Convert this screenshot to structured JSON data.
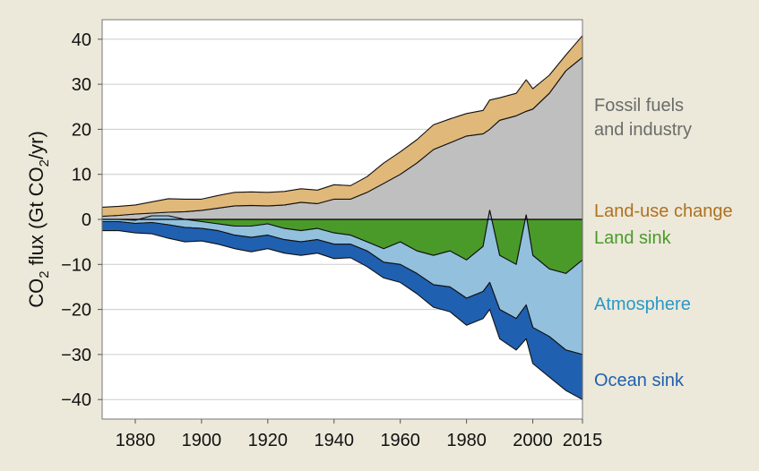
{
  "chart_data": {
    "type": "area",
    "title": "",
    "xlabel": "",
    "ylabel": {
      "prefix": "CO",
      "sub1": "2",
      "middle": " flux (Gt CO",
      "sub2": "2",
      "suffix": "/yr)"
    },
    "xlim": [
      1870,
      2015
    ],
    "ylim": [
      -42,
      44
    ],
    "x_ticks": [
      1880,
      1900,
      1920,
      1940,
      1960,
      1980,
      2000,
      2015
    ],
    "y_ticks": [
      40,
      30,
      20,
      10,
      0,
      -10,
      -20,
      -30,
      -40
    ],
    "y_tick_labels": [
      "40",
      "30",
      "20",
      "10",
      "0",
      "−10",
      "−20",
      "−30",
      "−40"
    ],
    "grid": "horizontal",
    "years": [
      1870,
      1875,
      1880,
      1885,
      1890,
      1895,
      1900,
      1905,
      1910,
      1915,
      1920,
      1925,
      1930,
      1935,
      1940,
      1945,
      1950,
      1955,
      1960,
      1965,
      1970,
      1975,
      1980,
      1985,
      1987,
      1990,
      1995,
      1998,
      2000,
      2005,
      2010,
      2015
    ],
    "series": [
      {
        "name": "Fossil fuels and industry",
        "label_lines": [
          "Fossil fuels",
          " and industry"
        ],
        "color": "#bfbfbf",
        "label_color": "#6b6b6b",
        "side": "positive",
        "values": [
          0.7,
          0.9,
          1.2,
          1.4,
          1.6,
          1.7,
          2.0,
          2.5,
          3.0,
          3.1,
          3.0,
          3.2,
          3.8,
          3.5,
          4.5,
          4.5,
          6.0,
          8.0,
          10.0,
          12.5,
          15.5,
          17.0,
          18.5,
          19.0,
          20.0,
          22.0,
          23.0,
          24.0,
          24.5,
          28.0,
          33.0,
          36.0
        ]
      },
      {
        "name": "Land-use change",
        "label_lines": [
          "Land-use change"
        ],
        "color": "#e0b87a",
        "label_color": "#b07020",
        "side": "positive",
        "values": [
          2.0,
          2.0,
          2.0,
          2.5,
          3.0,
          2.8,
          2.5,
          2.8,
          3.0,
          3.0,
          3.0,
          3.0,
          3.0,
          3.0,
          3.2,
          3.0,
          3.5,
          4.5,
          5.0,
          5.2,
          5.5,
          5.3,
          5.0,
          5.2,
          6.5,
          5.0,
          5.0,
          7.0,
          4.5,
          4.0,
          3.5,
          4.8
        ]
      },
      {
        "name": "Land sink",
        "label_lines": [
          "Land sink"
        ],
        "color": "#4a9a2a",
        "label_color": "#4a9a2a",
        "side": "negative",
        "values": [
          0.0,
          0.0,
          -0.2,
          0.8,
          0.8,
          0.0,
          -0.5,
          -1.0,
          -1.5,
          -1.5,
          -1.0,
          -2.0,
          -2.5,
          -2.0,
          -3.0,
          -3.5,
          -5.0,
          -6.5,
          -5.0,
          -7.0,
          -8.0,
          -7.0,
          -9.0,
          -6.0,
          2.0,
          -8.0,
          -10.0,
          1.0,
          -8.0,
          -11.0,
          -12.0,
          -9.0
        ]
      },
      {
        "name": "Atmosphere",
        "label_lines": [
          "Atmosphere"
        ],
        "color": "#93c0dd",
        "label_color": "#2a98c8",
        "side": "negative",
        "values": [
          -0.5,
          -0.5,
          -0.7,
          -1.5,
          -2.0,
          -1.8,
          -1.5,
          -1.5,
          -2.0,
          -2.5,
          -2.5,
          -2.5,
          -2.5,
          -2.5,
          -2.5,
          -2.0,
          -2.0,
          -3.0,
          -5.0,
          -5.0,
          -6.5,
          -8.0,
          -8.5,
          -10.0,
          -16.0,
          -12.0,
          -12.0,
          -20.0,
          -16.0,
          -15.0,
          -17.0,
          -21.0
        ]
      },
      {
        "name": "Ocean sink",
        "label_lines": [
          "Ocean sink"
        ],
        "color": "#2060b0",
        "label_color": "#2060b0",
        "side": "negative",
        "values": [
          -2.0,
          -2.0,
          -2.1,
          -2.5,
          -3.0,
          -3.2,
          -2.8,
          -3.0,
          -3.0,
          -3.2,
          -3.0,
          -3.0,
          -3.0,
          -3.0,
          -3.2,
          -3.0,
          -3.5,
          -3.5,
          -4.0,
          -4.5,
          -5.0,
          -5.5,
          -6.0,
          -6.0,
          -6.0,
          -6.5,
          -7.0,
          -7.5,
          -8.0,
          -9.0,
          -9.0,
          -10.0
        ]
      }
    ]
  }
}
